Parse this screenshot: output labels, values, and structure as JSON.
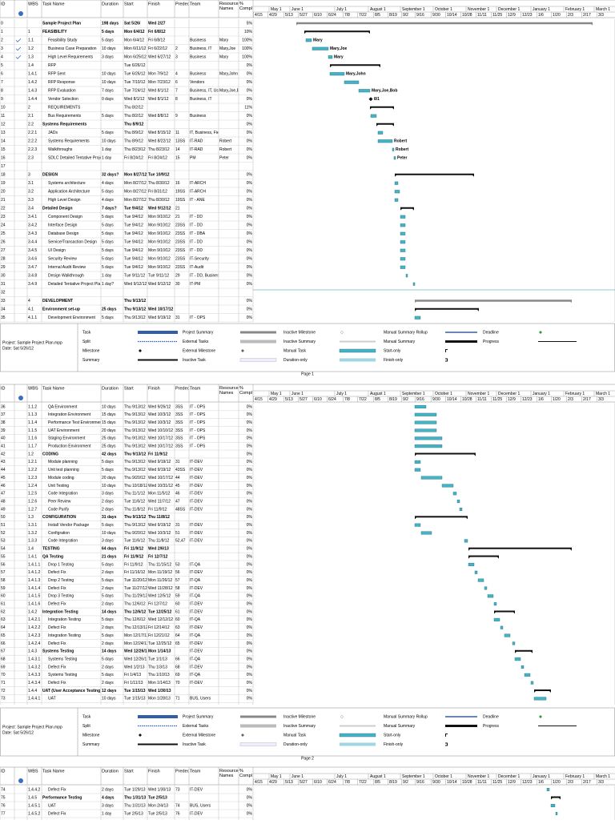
{
  "columns": [
    "ID",
    "WBS",
    "Task Name",
    "Duration",
    "Start",
    "Finish",
    "Predece",
    "Team",
    "Resource Names",
    "% Compl"
  ],
  "timescale": {
    "months": [
      "May 1",
      "June 1",
      "July 1",
      "August 1",
      "September 1",
      "October 1",
      "November 1",
      "December 1",
      "January 1",
      "February 1",
      "March 1"
    ],
    "weeks": [
      "4/15",
      "4/29",
      "5/13",
      "5/27",
      "6/10",
      "6/24",
      "7/8",
      "7/22",
      "8/5",
      "8/19",
      "9/2",
      "9/16",
      "9/30",
      "10/14",
      "10/28",
      "11/11",
      "11/25",
      "12/9",
      "12/23",
      "1/6",
      "1/20",
      "2/3",
      "2/17",
      "3/3"
    ]
  },
  "milestone_label": "8/1",
  "table": {
    "rows": [
      [
        "0",
        null,
        "Sample Project Plan",
        "198 days",
        "Sat 5/26/",
        "Wed 2/27",
        null,
        null,
        null,
        "5%"
      ],
      [
        "1",
        "1",
        "FEASIBILITY",
        "5 days",
        "Mon 6/4/12",
        "Fri 6/8/12",
        null,
        null,
        null,
        "10%"
      ],
      [
        "2",
        "1.1",
        "Feasibility Study",
        "5 days",
        "Mon 6/4/12",
        "Fri 6/8/12",
        null,
        "Business",
        "Mary",
        "100%"
      ],
      [
        "3",
        "1.2",
        "Business Case Preparation",
        "10 days",
        "Mon 6/11/12",
        "Fri 6/22/12",
        "2",
        "Business, IT",
        "Mary,Joe",
        "100%"
      ],
      [
        "4",
        "1.3",
        "High Level Requirements",
        "3 days",
        "Mon 6/25/12",
        "Wed 6/27/12",
        "3",
        "Business",
        "Mary",
        "100%"
      ],
      [
        "5",
        "1.4",
        "RFP",
        null,
        "Tue 6/26/12",
        null,
        null,
        null,
        null,
        "0%"
      ],
      [
        "6",
        "1.4.1",
        "RFP Sent",
        "10 days",
        "Tue 6/26/12",
        "Mon 7/9/12",
        "4",
        "Business",
        "Mary,John",
        "0%"
      ],
      [
        "7",
        "1.4.2",
        "RFP Response",
        "10 days",
        "Tue 7/10/12",
        "Mon 7/23/12",
        "6",
        "Vendors",
        null,
        "0%"
      ],
      [
        "8",
        "1.4.3",
        "RFP Evaluation",
        "7 days",
        "Tue 7/24/12",
        "Wed 8/1/12",
        "7",
        "Business, IT, Users",
        "Mary,Joe,Bob",
        "0%"
      ],
      [
        "9",
        "1.4.4",
        "Vendor Selection",
        "0 days",
        "Wed 8/1/12",
        "Wed 8/1/12",
        "8",
        "Business, IT",
        null,
        "0%"
      ],
      [
        "10",
        "2",
        "REQUIREMENTS",
        null,
        "Thu 8/2/12",
        null,
        null,
        null,
        null,
        "11%"
      ],
      [
        "11",
        "2.1",
        "Bus Requirements",
        "5 days",
        "Thu 8/2/12",
        "Wed 8/8/12",
        "9",
        "Business",
        null,
        "0%"
      ],
      [
        "12",
        "2.2",
        "Systems Requirements",
        null,
        "Thu 8/9/12",
        null,
        null,
        null,
        null,
        "0%"
      ],
      [
        "13",
        "2.2.1",
        "JADs",
        "5 days",
        "Thu 8/9/12",
        "Wed 8/15/12",
        "11",
        "IT, Business, Field",
        null,
        "0%"
      ],
      [
        "14",
        "2.2.2",
        "Systems Requirements",
        "10 days",
        "Thu 8/9/12",
        "Wed 8/22/12",
        "13SS",
        "IT-RAD",
        "Robert",
        "0%"
      ],
      [
        "15",
        "2.2.3",
        "Walkthroughs",
        "1 day",
        "Thu 8/23/12",
        "Thu 8/23/12",
        "14",
        "IT-RAD",
        "Robert",
        "0%"
      ],
      [
        "16",
        "2.3",
        "SDLC Detailed Tentative Project Plan",
        "1 day",
        "Fri 8/24/12",
        "Fri 8/24/12",
        "15",
        "PM",
        "Peter",
        "0%"
      ],
      [
        "17",
        null,
        null,
        null,
        null,
        null,
        null,
        null,
        null,
        null
      ],
      [
        "18",
        "3",
        "DESIGN",
        "32 days?",
        "Mon 8/27/12",
        "Tue 10/9/12",
        null,
        null,
        null,
        "0%"
      ],
      [
        "19",
        "3.1",
        "Systems architecture",
        "4 days",
        "Mon 8/27/12",
        "Thu 8/30/12",
        "16",
        "IT-ARCH",
        null,
        "0%"
      ],
      [
        "20",
        "3.2",
        "Application Architecture",
        "5 days",
        "Mon 8/27/12",
        "Fri 8/31/12",
        "19SS",
        "IT-ARCH",
        null,
        "0%"
      ],
      [
        "21",
        "3.3",
        "High Level Design",
        "4 days",
        "Mon 8/27/12",
        "Thu 8/30/12",
        "19SS",
        "IT - ANE",
        null,
        "0%"
      ],
      [
        "22",
        "3.4",
        "Detailed Design",
        "7 days?",
        "Tue 9/4/12",
        "Wed 9/12/12",
        "21",
        null,
        null,
        "0%"
      ],
      [
        "23",
        "3.4.1",
        "Component Design",
        "5 days",
        "Tue 9/4/12",
        "Mon 9/10/12",
        "21",
        "IT - DD",
        null,
        "0%"
      ],
      [
        "24",
        "3.4.2",
        "Interface Design",
        "5 days",
        "Tue 9/4/12",
        "Mon 9/10/12",
        "23SS",
        "IT - DD",
        null,
        "0%"
      ],
      [
        "25",
        "3.4.3",
        "Database Design",
        "5 days",
        "Tue 9/4/12",
        "Mon 9/10/12",
        "23SS",
        "IT - DBA",
        null,
        "0%"
      ],
      [
        "26",
        "3.4.4",
        "Service/Transaction Design",
        "5 days",
        "Tue 9/4/12",
        "Mon 9/10/12",
        "23SS",
        "IT - DD",
        null,
        "0%"
      ],
      [
        "27",
        "3.4.5",
        "UI Design",
        "5 days",
        "Tue 9/4/12",
        "Mon 9/10/12",
        "23SS",
        "IT - DD",
        null,
        "0%"
      ],
      [
        "28",
        "3.4.6",
        "Security Review",
        "5 days",
        "Tue 9/4/12",
        "Mon 9/10/12",
        "23SS",
        "IT-Security",
        null,
        "0%"
      ],
      [
        "29",
        "3.4.7",
        "Internal Audit Review",
        "5 days",
        "Tue 9/4/12",
        "Mon 9/10/12",
        "23SS",
        "IT-Audit",
        null,
        "0%"
      ],
      [
        "30",
        "3.4.8",
        "Design Walkthrough",
        "1 day",
        "Tue 9/11/12",
        "Tue 9/11/12",
        "29",
        "IT - DD, Business, User",
        null,
        "0%"
      ],
      [
        "31",
        "3.4.9",
        "Detailed Tentative Project Plan",
        "1 day?",
        "Wed 9/12/12",
        "Wed 9/12/12",
        "30",
        "IT-PM",
        null,
        "0%"
      ],
      [
        "32",
        null,
        null,
        null,
        null,
        null,
        null,
        null,
        null,
        null
      ],
      [
        "33",
        "4",
        "DEVELOPMENT",
        null,
        "Thu 9/13/12",
        null,
        null,
        null,
        null,
        "0%"
      ],
      [
        "34",
        "4.1",
        "Environment set-up",
        "25 days",
        "Thu 9/13/12",
        "Wed 10/17/12",
        null,
        null,
        null,
        "0%"
      ],
      [
        "35",
        "4.1.1",
        "Development Environment",
        "5 days",
        "Thu 9/13/12",
        "Wed 9/19/12",
        "31",
        "IT - OPS",
        null,
        "0%"
      ],
      [
        "36",
        "1.1.2",
        "QA Environment",
        "10 days",
        "Thu 9/13/12",
        "Wed 9/26/12",
        "3SS",
        "IT - OPS",
        null,
        "0%"
      ],
      [
        "37",
        "1.1.3",
        "Integration Environment",
        "15 days",
        "Thu 9/13/12",
        "Wed 10/3/12",
        "3SS",
        "IT - OPS",
        null,
        "0%"
      ],
      [
        "38",
        "1.1.4",
        "Performance Test Environment",
        "15 days",
        "Thu 9/13/12",
        "Wed 10/3/12",
        "3SS",
        "IT - OPS",
        null,
        "0%"
      ],
      [
        "39",
        "1.1.5",
        "UAT Environment",
        "20 days",
        "Thu 9/13/12",
        "Wed 10/10/12",
        "3SS",
        "IT - OPS",
        null,
        "0%"
      ],
      [
        "40",
        "1.1.6",
        "Staging Environment",
        "25 days",
        "Thu 9/13/12",
        "Wed 10/17/12",
        "3SS",
        "IT - OPS",
        null,
        "0%"
      ],
      [
        "41",
        "1.1.7",
        "Production Environment",
        "25 days",
        "Thu 9/13/12",
        "Wed 10/17/12",
        "3SS",
        "IT - OPS",
        null,
        "0%"
      ],
      [
        "42",
        "1.2",
        "CODING",
        "42 days",
        "Thu 9/13/12",
        "Fri 11/9/12",
        null,
        null,
        null,
        "0%"
      ],
      [
        "43",
        "1.2.1",
        "Module planning",
        "5 days",
        "Thu 9/13/12",
        "Wed 9/19/12",
        "31",
        "IT-DEV",
        null,
        "0%"
      ],
      [
        "44",
        "1.2.2",
        "Unit test planning",
        "5 days",
        "Thu 9/13/12",
        "Wed 9/19/12",
        "43SS",
        "IT-DEV",
        null,
        "0%"
      ],
      [
        "45",
        "1.2.3",
        "Module coding",
        "20 days",
        "Thu 9/20/12",
        "Wed 10/17/12",
        "44",
        "IT-DEV",
        null,
        "0%"
      ],
      [
        "46",
        "1.2.4",
        "Unit Testing",
        "10 days",
        "Thu 10/18/12",
        "Wed 10/31/12",
        "45",
        "IT-DEV",
        null,
        "0%"
      ],
      [
        "47",
        "1.2.5",
        "Code Integration",
        "3 days",
        "Thu 11/1/12",
        "Mon 11/5/12",
        "46",
        "IT-DEV",
        null,
        "0%"
      ],
      [
        "48",
        "1.2.6",
        "Peer Review",
        "2 days",
        "Tue 11/6/12",
        "Wed 11/7/12",
        "47",
        "IT-DEV",
        null,
        "0%"
      ],
      [
        "49",
        "1.2.7",
        "Code Purify",
        "2 days",
        "Thu 11/8/12",
        "Fri 11/9/12",
        "48SS",
        "IT-DEV",
        null,
        "0%"
      ],
      [
        "50",
        "1.3",
        "CONFIGURATION",
        "31 days",
        "Thu 9/13/12",
        "Thu 11/8/12",
        null,
        null,
        null,
        "0%"
      ],
      [
        "51",
        "1.3.1",
        "Install Vendor Package",
        "5 days",
        "Thu 9/13/12",
        "Wed 9/19/12",
        "31",
        "IT-DEV",
        null,
        "0%"
      ],
      [
        "52",
        "1.3.2",
        "Configration",
        "10 days",
        "Thu 9/20/12",
        "Wed 10/3/12",
        "51",
        "IT-DEV",
        null,
        "0%"
      ],
      [
        "53",
        "1.3.3",
        "Code Integration",
        "3 days",
        "Tue 11/6/12",
        "Thu 11/8/12",
        "52,47",
        "IT-DEV",
        null,
        "0%"
      ],
      [
        "54",
        "1.4",
        "TESTING",
        "64 days",
        "Fri 11/9/12",
        "Wed 2/6/13",
        null,
        null,
        null,
        "0%"
      ],
      [
        "55",
        "1.4.1",
        "QA Testing",
        "21 days",
        "Fri 11/9/12",
        "Fri 12/7/12",
        null,
        null,
        null,
        "0%"
      ],
      [
        "56",
        "1.4.1.1",
        "Drop 1 Testing",
        "5 days",
        "Fri 11/9/12",
        "Thu 11/15/12",
        "53",
        "IT-QA",
        null,
        "0%"
      ],
      [
        "57",
        "1.4.1.2",
        "Defect Fix",
        "2 days",
        "Fri 11/16/12",
        "Mon 11/19/12",
        "56",
        "IT-DEV",
        null,
        "0%"
      ],
      [
        "58",
        "1.4.1.3",
        "Drop 2 Testing",
        "5 days",
        "Tue 11/20/12",
        "Mon 11/26/12",
        "57",
        "IT-QA",
        null,
        "0%"
      ],
      [
        "59",
        "1.4.1.4",
        "Defect Fix",
        "2 days",
        "Tue 11/27/12",
        "Wed 11/28/12",
        "58",
        "IT-DEV",
        null,
        "0%"
      ],
      [
        "60",
        "1.4.1.5",
        "Drop 3 Testing",
        "5 days",
        "Thu 11/29/12",
        "Wed 12/5/12",
        "59",
        "IT-QA",
        null,
        "0%"
      ],
      [
        "61",
        "1.4.1.6",
        "Defect Fix",
        "2 days",
        "Thu 12/6/12",
        "Fri 12/7/12",
        "60",
        "IT-DEV",
        null,
        "0%"
      ],
      [
        "62",
        "1.4.2",
        "Integration Testing",
        "14 days",
        "Thu 12/6/12",
        "Tue 12/25/12",
        "61",
        "IT-DEV",
        null,
        "0%"
      ],
      [
        "63",
        "1.4.2.1",
        "Integration Testing",
        "5 days",
        "Thu 12/6/12",
        "Wed 12/12/12",
        "60",
        "IT-QA",
        null,
        "0%"
      ],
      [
        "64",
        "1.4.2.2",
        "Defect Fix",
        "2 days",
        "Thu 12/13/12",
        "Fri 12/14/12",
        "63",
        "IT-DEV",
        null,
        "0%"
      ],
      [
        "65",
        "1.4.2.3",
        "Integration Testing",
        "5 days",
        "Mon 12/17/12",
        "Fri 12/21/12",
        "64",
        "IT-QA",
        null,
        "0%"
      ],
      [
        "66",
        "1.4.2.4",
        "Defect Fix",
        "2 days",
        "Mon 12/24/12",
        "Tue 12/25/12",
        "65",
        "IT-DEV",
        null,
        "0%"
      ],
      [
        "67",
        "1.4.3",
        "Systems Testing",
        "14 days",
        "Wed 12/26/12",
        "Mon 1/14/13",
        null,
        "IT-DEV",
        null,
        "0%"
      ],
      [
        "68",
        "1.4.3.1",
        "Systems Testing",
        "5 days",
        "Wed 12/26/12",
        "Tue 1/1/13",
        "66",
        "IT-QA",
        null,
        "0%"
      ],
      [
        "69",
        "1.4.3.2",
        "Defect Fix",
        "2 days",
        "Wed 1/2/13",
        "Thu 1/3/13",
        "68",
        "IT-DEV",
        null,
        "0%"
      ],
      [
        "70",
        "1.4.3.3",
        "Systems Testing",
        "5 days",
        "Fri 1/4/13",
        "Thu 1/10/13",
        "69",
        "IT-QA",
        null,
        "0%"
      ],
      [
        "71",
        "1.4.3.4",
        "Defect Fix",
        "2 days",
        "Fri 1/11/13",
        "Mon 1/14/13",
        "70",
        "IT-DEV",
        null,
        "0%"
      ],
      [
        "72",
        "1.4.4",
        "UAT (User Acceptance Testing)",
        "12 days",
        "Tue 1/15/13",
        "Wed 1/30/13",
        null,
        null,
        null,
        "0%"
      ],
      [
        "73",
        "1.4.4.1",
        "UAT",
        "10 days",
        "Tue 1/15/13",
        "Mon 1/28/13",
        "71",
        "BUS, Users",
        null,
        "0%"
      ],
      [
        "74",
        "1.4.4.2",
        "Defect Fix",
        "2 days",
        "Tue 1/29/13",
        "Wed 1/30/13",
        "73",
        "IT-DEV",
        null,
        "0%"
      ],
      [
        "75",
        "1.4.5",
        "Performance Testing",
        "4 days",
        "Thu 1/31/13",
        "Tue 2/5/13",
        null,
        null,
        null,
        "0%"
      ],
      [
        "76",
        "1.4.5.1",
        "UAT",
        "3 days",
        "Thu 1/31/13",
        "Mon 2/4/13",
        "74",
        "BUS, Users",
        null,
        "0%"
      ],
      [
        "77",
        "1.4.5.2",
        "Defect Fix",
        "1 day",
        "Tue 2/5/13",
        "Tue 2/5/13",
        "76",
        "IT-DEV",
        null,
        "0%"
      ]
    ]
  },
  "legend": [
    [
      "Task",
      "Split",
      "Milestone",
      "Summary"
    ],
    [
      "Project Summary",
      "External Tasks",
      "External Milestone",
      "Inactive Task"
    ],
    [
      "Inactive Milestone",
      "Inactive Summary",
      "Manual Task",
      "Duration-only"
    ],
    [
      "Manual Summary Rollup",
      "Manual Summary",
      "Start-only",
      "Finish-only"
    ],
    [
      "Deadline",
      "Progress"
    ]
  ],
  "footer": {
    "project": "Project: Sample Project Plan.mpp",
    "date": "Date: Sat 5/26/12"
  },
  "pages": [
    "Page 1",
    "Page 2"
  ]
}
